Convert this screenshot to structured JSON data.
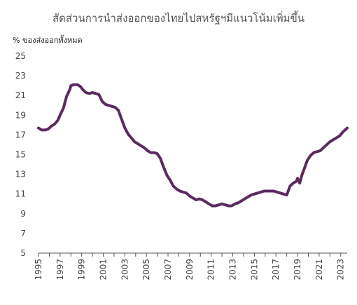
{
  "chart_data": {
    "type": "line",
    "title": "สัดส่วนการนำส่งออกของไทยไปสหรัฐฯมีแนวโน้มเพิ่มขึ้น",
    "ylabel": "% ของส่งออกทั้งหมด",
    "xlabel": "",
    "ylim": [
      5,
      25
    ],
    "xlim": [
      1995,
      2023.6
    ],
    "y_ticks": [
      "5",
      "7",
      "9",
      "11",
      "13",
      "15",
      "17",
      "19",
      "21",
      "23",
      "25"
    ],
    "x_ticks": [
      "1995",
      "1997",
      "1999",
      "2001",
      "2003",
      "2005",
      "2007",
      "2009",
      "2011",
      "2013",
      "2015",
      "2017",
      "2019",
      "2021",
      "2023"
    ],
    "grid": false,
    "line_color": "#5b2a5e",
    "series": [
      {
        "x": [
          1995.0,
          1995.3,
          1995.6,
          1995.9,
          1996.2,
          1996.5,
          1996.8,
          1997.0,
          1997.3,
          1997.6,
          1997.9,
          1998.0,
          1998.3,
          1998.6,
          1998.9,
          1999.1,
          1999.4,
          1999.7,
          2000.0,
          2000.3,
          2000.6,
          2000.9,
          2001.2,
          2001.5,
          2001.8,
          2002.1,
          2002.4,
          2002.7,
          2003.0,
          2003.3,
          2003.6,
          2003.9,
          2004.2,
          2004.5,
          2004.8,
          2005.1,
          2005.4,
          2005.7,
          2006.0,
          2006.3,
          2006.6,
          2006.9,
          2007.2,
          2007.5,
          2007.8,
          2008.1,
          2008.4,
          2008.7,
          2009.0,
          2009.3,
          2009.6,
          2009.9,
          2010.2,
          2010.5,
          2010.8,
          2011.1,
          2011.4,
          2011.7,
          2012.0,
          2012.3,
          2012.6,
          2012.9,
          2013.2,
          2013.5,
          2013.8,
          2014.1,
          2014.4,
          2014.7,
          2015.0,
          2015.3,
          2015.6,
          2015.9,
          2016.2,
          2016.5,
          2016.8,
          2017.1,
          2017.4,
          2017.7,
          2018.0,
          2018.3,
          2018.6,
          2018.9,
          2019.0,
          2019.2,
          2019.4,
          2019.6,
          2019.9,
          2020.2,
          2020.5,
          2020.8,
          2021.1,
          2021.4,
          2021.7,
          2022.0,
          2022.3,
          2022.6,
          2022.9,
          2023.2,
          2023.6
        ],
        "y": [
          17.7,
          17.5,
          17.5,
          17.6,
          17.9,
          18.1,
          18.5,
          19.0,
          19.7,
          20.9,
          21.6,
          22.0,
          22.1,
          22.1,
          21.9,
          21.6,
          21.3,
          21.2,
          21.3,
          21.2,
          21.1,
          20.4,
          20.1,
          20.0,
          19.9,
          19.8,
          19.5,
          18.6,
          17.7,
          17.1,
          16.7,
          16.3,
          16.1,
          15.9,
          15.7,
          15.4,
          15.2,
          15.2,
          15.1,
          14.6,
          13.7,
          12.9,
          12.4,
          11.8,
          11.5,
          11.3,
          11.2,
          11.1,
          10.8,
          10.6,
          10.4,
          10.5,
          10.4,
          10.2,
          10.0,
          9.8,
          9.8,
          9.9,
          10.0,
          9.9,
          9.8,
          9.8,
          10.0,
          10.1,
          10.3,
          10.5,
          10.7,
          10.9,
          11.0,
          11.1,
          11.2,
          11.3,
          11.3,
          11.3,
          11.3,
          11.2,
          11.1,
          11.0,
          10.9,
          11.8,
          12.1,
          12.3,
          12.6,
          12.1,
          12.9,
          13.5,
          14.4,
          14.9,
          15.2,
          15.3,
          15.4,
          15.7,
          16.0,
          16.3,
          16.5,
          16.7,
          16.9,
          17.3,
          17.7
        ]
      }
    ]
  }
}
